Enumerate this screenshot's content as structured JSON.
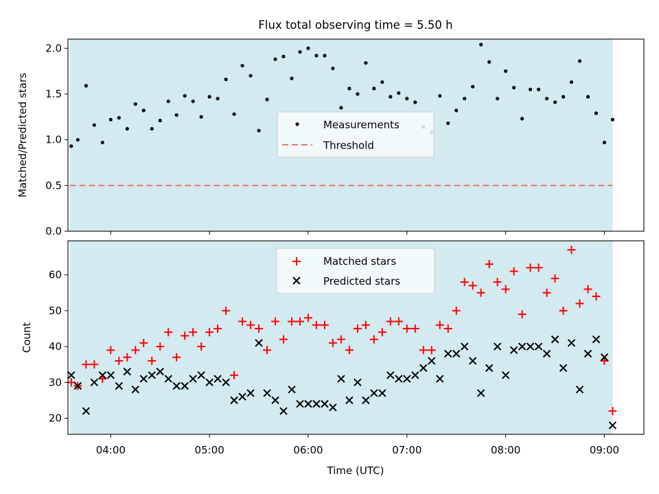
{
  "title": "Flux total observing time = 5.50 h",
  "colors": {
    "shade": "#d3eaf0",
    "measurement": "#000000",
    "threshold": "#f07070",
    "matched": "#ff0000",
    "predicted": "#000000"
  },
  "chart_data": [
    {
      "type": "scatter",
      "ylabel": "Matched/Predicted stars",
      "ylim": [
        0,
        2.1
      ],
      "yticks": [
        0.0,
        0.5,
        1.0,
        1.5,
        2.0
      ],
      "ytick_labels": [
        "0.0",
        "0.5",
        "1.0",
        "1.5",
        "2.0"
      ],
      "xlim": [
        "03:34",
        "09:24"
      ],
      "shaded_span": [
        "03:35",
        "09:05"
      ],
      "legend": {
        "position": "center",
        "entries": [
          "Measurements",
          "Threshold"
        ]
      },
      "series": [
        {
          "name": "Measurements",
          "marker": "dot",
          "x": [
            "03:36",
            "03:40",
            "03:45",
            "03:50",
            "03:55",
            "04:00",
            "04:05",
            "04:10",
            "04:15",
            "04:20",
            "04:25",
            "04:30",
            "04:35",
            "04:40",
            "04:45",
            "04:50",
            "04:55",
            "05:00",
            "05:05",
            "05:10",
            "05:15",
            "05:20",
            "05:25",
            "05:30",
            "05:35",
            "05:40",
            "05:45",
            "05:50",
            "05:55",
            "06:00",
            "06:05",
            "06:10",
            "06:15",
            "06:20",
            "06:25",
            "06:30",
            "06:35",
            "06:40",
            "06:45",
            "06:50",
            "06:55",
            "07:00",
            "07:05",
            "07:10",
            "07:15",
            "07:20",
            "07:25",
            "07:30",
            "07:35",
            "07:40",
            "07:45",
            "07:50",
            "07:55",
            "08:00",
            "08:05",
            "08:10",
            "08:15",
            "08:20",
            "08:25",
            "08:30",
            "08:35",
            "08:40",
            "08:45",
            "08:50",
            "08:55",
            "09:00",
            "09:05"
          ],
          "y": [
            0.93,
            1.0,
            1.59,
            1.16,
            0.97,
            1.22,
            1.24,
            1.12,
            1.39,
            1.32,
            1.12,
            1.21,
            1.42,
            1.27,
            1.48,
            1.42,
            1.25,
            1.47,
            1.45,
            1.66,
            1.28,
            1.81,
            1.7,
            1.1,
            1.44,
            1.88,
            1.91,
            1.67,
            1.96,
            2.0,
            1.92,
            1.92,
            1.78,
            1.35,
            1.56,
            1.5,
            1.84,
            1.56,
            1.63,
            1.47,
            1.51,
            1.45,
            1.41,
            1.14,
            1.08,
            1.48,
            1.18,
            1.32,
            1.45,
            1.58,
            2.04,
            1.85,
            1.45,
            1.75,
            1.57,
            1.23,
            1.55,
            1.55,
            1.45,
            1.41,
            1.47,
            1.63,
            1.86,
            1.47,
            1.29,
            0.97,
            1.22
          ]
        },
        {
          "name": "Threshold",
          "line": "dashed",
          "y_constant": 0.5
        }
      ]
    },
    {
      "type": "scatter",
      "xlabel": "Time (UTC)",
      "ylabel": "Count",
      "ylim": [
        15.5,
        69.5
      ],
      "yticks": [
        20,
        30,
        40,
        50,
        60
      ],
      "ytick_labels": [
        "20",
        "30",
        "40",
        "50",
        "60"
      ],
      "xlim": [
        "03:34",
        "09:24"
      ],
      "xticks": [
        "04:00",
        "05:00",
        "06:00",
        "07:00",
        "08:00",
        "09:00"
      ],
      "shaded_span": [
        "03:35",
        "09:05"
      ],
      "legend": {
        "position": "top-center",
        "entries": [
          "Matched stars",
          "Predicted stars"
        ]
      },
      "series": [
        {
          "name": "Matched stars",
          "marker": "plus",
          "x": [
            "03:36",
            "03:40",
            "03:45",
            "03:50",
            "03:55",
            "04:00",
            "04:05",
            "04:10",
            "04:15",
            "04:20",
            "04:25",
            "04:30",
            "04:35",
            "04:40",
            "04:45",
            "04:50",
            "04:55",
            "05:00",
            "05:05",
            "05:10",
            "05:15",
            "05:20",
            "05:25",
            "05:30",
            "05:35",
            "05:40",
            "05:45",
            "05:50",
            "05:55",
            "06:00",
            "06:05",
            "06:10",
            "06:15",
            "06:20",
            "06:25",
            "06:30",
            "06:35",
            "06:40",
            "06:45",
            "06:50",
            "06:55",
            "07:00",
            "07:05",
            "07:10",
            "07:15",
            "07:20",
            "07:25",
            "07:30",
            "07:35",
            "07:40",
            "07:45",
            "07:50",
            "07:55",
            "08:00",
            "08:05",
            "08:10",
            "08:15",
            "08:20",
            "08:25",
            "08:30",
            "08:35",
            "08:40",
            "08:45",
            "08:50",
            "08:55",
            "09:00",
            "09:05"
          ],
          "y": [
            30,
            29,
            35,
            35,
            31,
            39,
            36,
            37,
            39,
            41,
            36,
            40,
            44,
            37,
            43,
            44,
            40,
            44,
            45,
            50,
            32,
            47,
            46,
            45,
            39,
            47,
            42,
            47,
            47,
            48,
            46,
            46,
            41,
            42,
            39,
            45,
            46,
            42,
            44,
            47,
            47,
            45,
            45,
            39,
            39,
            46,
            45,
            50,
            58,
            57,
            55,
            63,
            58,
            56,
            61,
            49,
            62,
            62,
            55,
            59,
            50,
            67,
            52,
            56,
            54,
            36,
            22
          ]
        },
        {
          "name": "Predicted stars",
          "marker": "x",
          "x": [
            "03:36",
            "03:40",
            "03:45",
            "03:50",
            "03:55",
            "04:00",
            "04:05",
            "04:10",
            "04:15",
            "04:20",
            "04:25",
            "04:30",
            "04:35",
            "04:40",
            "04:45",
            "04:50",
            "04:55",
            "05:00",
            "05:05",
            "05:10",
            "05:15",
            "05:20",
            "05:25",
            "05:30",
            "05:35",
            "05:40",
            "05:45",
            "05:50",
            "05:55",
            "06:00",
            "06:05",
            "06:10",
            "06:15",
            "06:20",
            "06:25",
            "06:30",
            "06:35",
            "06:40",
            "06:45",
            "06:50",
            "06:55",
            "07:00",
            "07:05",
            "07:10",
            "07:15",
            "07:20",
            "07:25",
            "07:30",
            "07:35",
            "07:40",
            "07:45",
            "07:50",
            "07:55",
            "08:00",
            "08:05",
            "08:10",
            "08:15",
            "08:20",
            "08:25",
            "08:30",
            "08:35",
            "08:40",
            "08:45",
            "08:50",
            "08:55",
            "09:00",
            "09:05"
          ],
          "y": [
            32,
            29,
            22,
            30,
            32,
            32,
            29,
            33,
            28,
            31,
            32,
            33,
            31,
            29,
            29,
            31,
            32,
            30,
            31,
            30,
            25,
            26,
            27,
            41,
            27,
            25,
            22,
            28,
            24,
            24,
            24,
            24,
            23,
            31,
            25,
            30,
            25,
            27,
            27,
            32,
            31,
            31,
            32,
            34,
            36,
            31,
            38,
            38,
            40,
            36,
            27,
            34,
            40,
            32,
            39,
            40,
            40,
            40,
            38,
            42,
            34,
            41,
            28,
            38,
            42,
            37,
            18
          ]
        }
      ]
    }
  ]
}
